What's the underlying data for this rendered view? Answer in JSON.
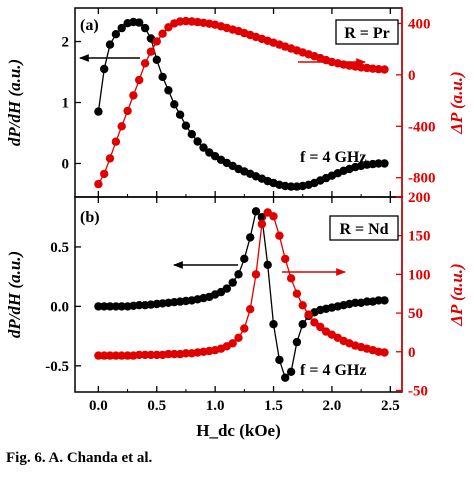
{
  "caption": "Fig. 6. A. Chanda et al.",
  "colors": {
    "left": "#000000",
    "right": "#e00000"
  },
  "chart_data": [
    {
      "type": "scatter",
      "panel_label": "(a)",
      "tag": "R = Pr",
      "freq_label": "f = 4 GHz",
      "xlabel": "H_dc (kOe)",
      "ylabel_left": "dP/dH (a.u.)",
      "ylabel_right": "ΔP (a.u.)",
      "xlim": [
        -0.2,
        2.6
      ],
      "ylim_left": [
        -0.55,
        2.55
      ],
      "ylim_right": [
        -950,
        520
      ],
      "xticks": [
        0.0,
        0.5,
        1.0,
        1.5,
        2.0,
        2.5
      ],
      "yticks_left": [
        0,
        1,
        2
      ],
      "yticks_right": [
        -800,
        -400,
        0,
        400
      ],
      "x": [
        0.0,
        0.05,
        0.1,
        0.15,
        0.2,
        0.25,
        0.3,
        0.35,
        0.4,
        0.45,
        0.5,
        0.55,
        0.6,
        0.65,
        0.7,
        0.75,
        0.8,
        0.85,
        0.9,
        0.95,
        1.0,
        1.05,
        1.1,
        1.15,
        1.2,
        1.25,
        1.3,
        1.35,
        1.4,
        1.45,
        1.5,
        1.55,
        1.6,
        1.65,
        1.7,
        1.75,
        1.8,
        1.85,
        1.9,
        1.95,
        2.0,
        2.05,
        2.1,
        2.15,
        2.2,
        2.25,
        2.3,
        2.35,
        2.4,
        2.45
      ],
      "series": [
        {
          "axis": "left",
          "values": [
            0.85,
            1.55,
            1.95,
            2.12,
            2.22,
            2.3,
            2.32,
            2.31,
            2.22,
            2.05,
            1.7,
            1.42,
            1.2,
            0.97,
            0.8,
            0.62,
            0.48,
            0.36,
            0.26,
            0.18,
            0.12,
            0.06,
            0.01,
            -0.04,
            -0.09,
            -0.13,
            -0.17,
            -0.21,
            -0.25,
            -0.29,
            -0.32,
            -0.35,
            -0.37,
            -0.38,
            -0.38,
            -0.37,
            -0.35,
            -0.32,
            -0.28,
            -0.24,
            -0.2,
            -0.16,
            -0.12,
            -0.09,
            -0.06,
            -0.04,
            -0.02,
            -0.01,
            0.0,
            0.0
          ]
        },
        {
          "axis": "right",
          "values": [
            -850,
            -770,
            -650,
            -520,
            -400,
            -280,
            -160,
            -40,
            90,
            180,
            260,
            320,
            370,
            400,
            415,
            418,
            415,
            410,
            405,
            398,
            390,
            378,
            365,
            352,
            340,
            325,
            310,
            295,
            280,
            265,
            250,
            235,
            220,
            205,
            190,
            175,
            160,
            145,
            130,
            115,
            100,
            90,
            80,
            72,
            65,
            58,
            53,
            48,
            44,
            42
          ]
        }
      ]
    },
    {
      "type": "scatter",
      "panel_label": "(b)",
      "tag": "R = Nd",
      "freq_label": "f = 4 GHz",
      "xlabel": "H_dc (kOe)",
      "ylabel_left": "dP/dH (a.u.)",
      "ylabel_right": "ΔP (a.u.)",
      "xlim": [
        -0.2,
        2.6
      ],
      "ylim_left": [
        -0.72,
        0.92
      ],
      "ylim_right": [
        -52,
        200
      ],
      "xticks": [
        0.0,
        0.5,
        1.0,
        1.5,
        2.0,
        2.5
      ],
      "yticks_left": [
        -0.5,
        0.0,
        0.5
      ],
      "yticks_right": [
        -50,
        0,
        50,
        100,
        150,
        200
      ],
      "x": [
        0.0,
        0.05,
        0.1,
        0.15,
        0.2,
        0.25,
        0.3,
        0.35,
        0.4,
        0.45,
        0.5,
        0.55,
        0.6,
        0.65,
        0.7,
        0.75,
        0.8,
        0.85,
        0.9,
        0.95,
        1.0,
        1.05,
        1.1,
        1.15,
        1.2,
        1.25,
        1.3,
        1.35,
        1.4,
        1.45,
        1.5,
        1.55,
        1.6,
        1.65,
        1.7,
        1.75,
        1.8,
        1.85,
        1.9,
        1.95,
        2.0,
        2.05,
        2.1,
        2.15,
        2.2,
        2.25,
        2.3,
        2.35,
        2.4,
        2.45
      ],
      "series": [
        {
          "axis": "left",
          "values": [
            0.0,
            0.0,
            0.0,
            0.0,
            0.0,
            0.0,
            0.005,
            0.01,
            0.01,
            0.015,
            0.02,
            0.025,
            0.03,
            0.035,
            0.04,
            0.045,
            0.05,
            0.06,
            0.07,
            0.08,
            0.1,
            0.12,
            0.15,
            0.2,
            0.27,
            0.4,
            0.58,
            0.8,
            0.75,
            0.35,
            -0.15,
            -0.45,
            -0.6,
            -0.55,
            -0.3,
            -0.15,
            -0.08,
            -0.05,
            -0.03,
            -0.02,
            -0.01,
            0.0,
            0.01,
            0.02,
            0.03,
            0.03,
            0.04,
            0.04,
            0.05,
            0.05
          ]
        },
        {
          "axis": "right",
          "values": [
            -5,
            -5,
            -5,
            -5,
            -5,
            -5,
            -5,
            -4,
            -4,
            -4,
            -4,
            -4,
            -3,
            -3,
            -3,
            -2,
            -2,
            -1,
            0,
            1,
            2,
            4,
            7,
            11,
            18,
            30,
            55,
            100,
            165,
            180,
            175,
            150,
            120,
            95,
            75,
            60,
            48,
            38,
            32,
            26,
            22,
            18,
            14,
            11,
            8,
            6,
            4,
            2,
            0,
            -1
          ]
        }
      ]
    }
  ]
}
